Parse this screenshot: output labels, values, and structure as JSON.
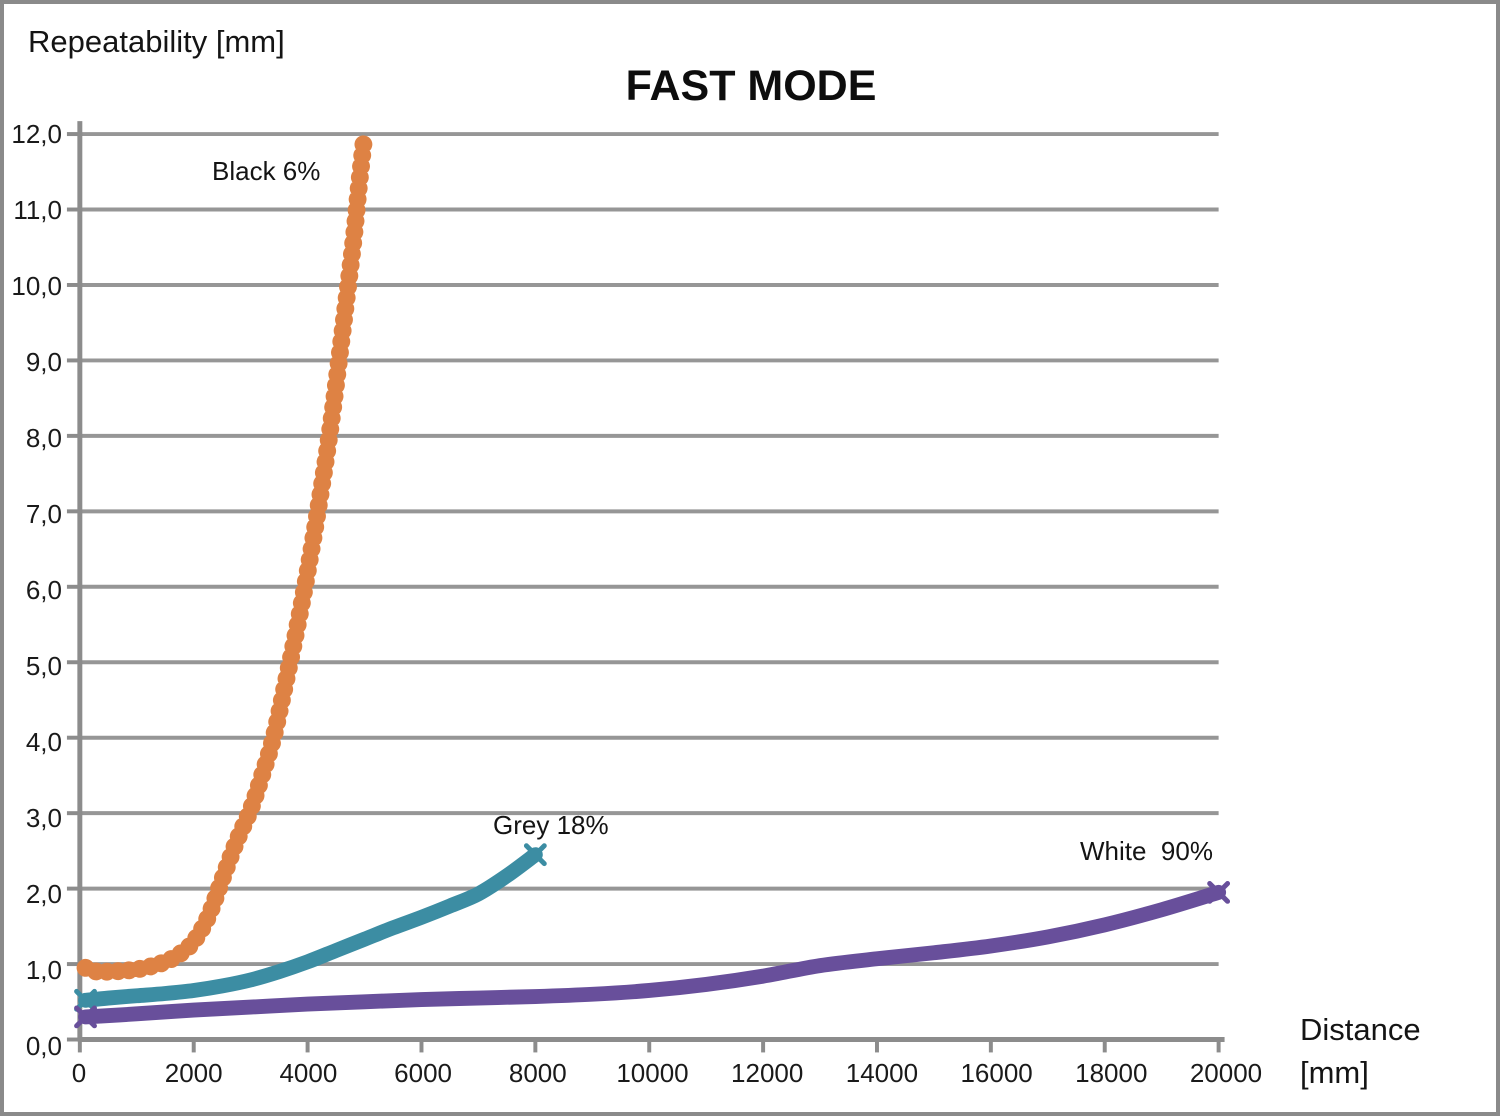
{
  "header": {
    "chart_title": "FAST MODE",
    "y_axis_title": "Repeatability [mm]",
    "x_axis_title_line1": "Distance",
    "x_axis_title_line2": "[mm]"
  },
  "annotations": {
    "black_label": "Black 6%",
    "grey_label": "Grey 18%",
    "white_label": "White  90%"
  },
  "colors": {
    "black_6_series": "#DE8244",
    "grey_18_series": "#3C8DA3",
    "white_90_series": "#684F9B",
    "gridline": "#969696",
    "axis": "#8C8C8C",
    "frame": "#8A8A8A",
    "text": "#111111"
  },
  "chart_data": {
    "type": "line",
    "title": "FAST MODE",
    "xlabel": "Distance [mm]",
    "ylabel": "Repeatability [mm]",
    "xlim": [
      0,
      20000
    ],
    "ylim": [
      0,
      12
    ],
    "grid": "horizontal",
    "legend_position": "inline-annotations",
    "x_ticks": [
      0,
      2000,
      4000,
      6000,
      8000,
      10000,
      12000,
      14000,
      16000,
      18000,
      20000
    ],
    "x_tick_labels": [
      "0",
      "2000",
      "4000",
      "6000",
      "8000",
      "10000",
      "12000",
      "14000",
      "16000",
      "18000",
      "20000"
    ],
    "y_ticks": [
      0,
      1,
      2,
      3,
      4,
      5,
      6,
      7,
      8,
      9,
      10,
      11,
      12
    ],
    "y_tick_labels": [
      "0,0",
      "1,0",
      "2,0",
      "3,0",
      "4,0",
      "5,0",
      "6,0",
      "7,0",
      "8,0",
      "9,0",
      "10,0",
      "11,0",
      "12,0"
    ],
    "series": [
      {
        "name": "Black 6%",
        "color": "#DE8244",
        "style": "dotted-round",
        "line_width": 18,
        "end_markers": "none",
        "points": [
          [
            100,
            0.95
          ],
          [
            300,
            0.9
          ],
          [
            500,
            0.9
          ],
          [
            750,
            0.91
          ],
          [
            1000,
            0.93
          ],
          [
            1250,
            0.97
          ],
          [
            1500,
            1.03
          ],
          [
            1750,
            1.13
          ],
          [
            2000,
            1.3
          ],
          [
            2250,
            1.62
          ],
          [
            2500,
            2.12
          ],
          [
            2750,
            2.62
          ],
          [
            3000,
            3.05
          ],
          [
            3200,
            3.5
          ],
          [
            3400,
            4.0
          ],
          [
            3600,
            4.68
          ],
          [
            3800,
            5.4
          ],
          [
            4000,
            6.2
          ],
          [
            4200,
            7.1
          ],
          [
            4400,
            8.1
          ],
          [
            4600,
            9.3
          ],
          [
            4800,
            10.55
          ],
          [
            4900,
            11.3
          ],
          [
            5000,
            12.0
          ]
        ]
      },
      {
        "name": "Grey 18%",
        "color": "#3C8DA3",
        "style": "solid",
        "line_width": 15,
        "end_markers": "x",
        "points": [
          [
            100,
            0.52
          ],
          [
            500,
            0.55
          ],
          [
            1000,
            0.58
          ],
          [
            1500,
            0.61
          ],
          [
            2000,
            0.65
          ],
          [
            2500,
            0.71
          ],
          [
            3000,
            0.79
          ],
          [
            3500,
            0.9
          ],
          [
            4000,
            1.03
          ],
          [
            4500,
            1.18
          ],
          [
            5000,
            1.33
          ],
          [
            5500,
            1.48
          ],
          [
            6000,
            1.62
          ],
          [
            6500,
            1.77
          ],
          [
            7000,
            1.93
          ],
          [
            7500,
            2.17
          ],
          [
            8000,
            2.45
          ]
        ]
      },
      {
        "name": "White 90%",
        "color": "#684F9B",
        "style": "solid",
        "line_width": 15,
        "end_markers": "x",
        "points": [
          [
            100,
            0.3
          ],
          [
            1000,
            0.34
          ],
          [
            2000,
            0.39
          ],
          [
            3000,
            0.43
          ],
          [
            4000,
            0.47
          ],
          [
            5000,
            0.5
          ],
          [
            6000,
            0.53
          ],
          [
            7000,
            0.55
          ],
          [
            8000,
            0.57
          ],
          [
            9000,
            0.6
          ],
          [
            10000,
            0.65
          ],
          [
            11000,
            0.73
          ],
          [
            12000,
            0.84
          ],
          [
            13000,
            0.98
          ],
          [
            14000,
            1.07
          ],
          [
            15000,
            1.15
          ],
          [
            16000,
            1.24
          ],
          [
            17000,
            1.36
          ],
          [
            18000,
            1.52
          ],
          [
            19000,
            1.72
          ],
          [
            20000,
            1.95
          ]
        ]
      }
    ]
  }
}
